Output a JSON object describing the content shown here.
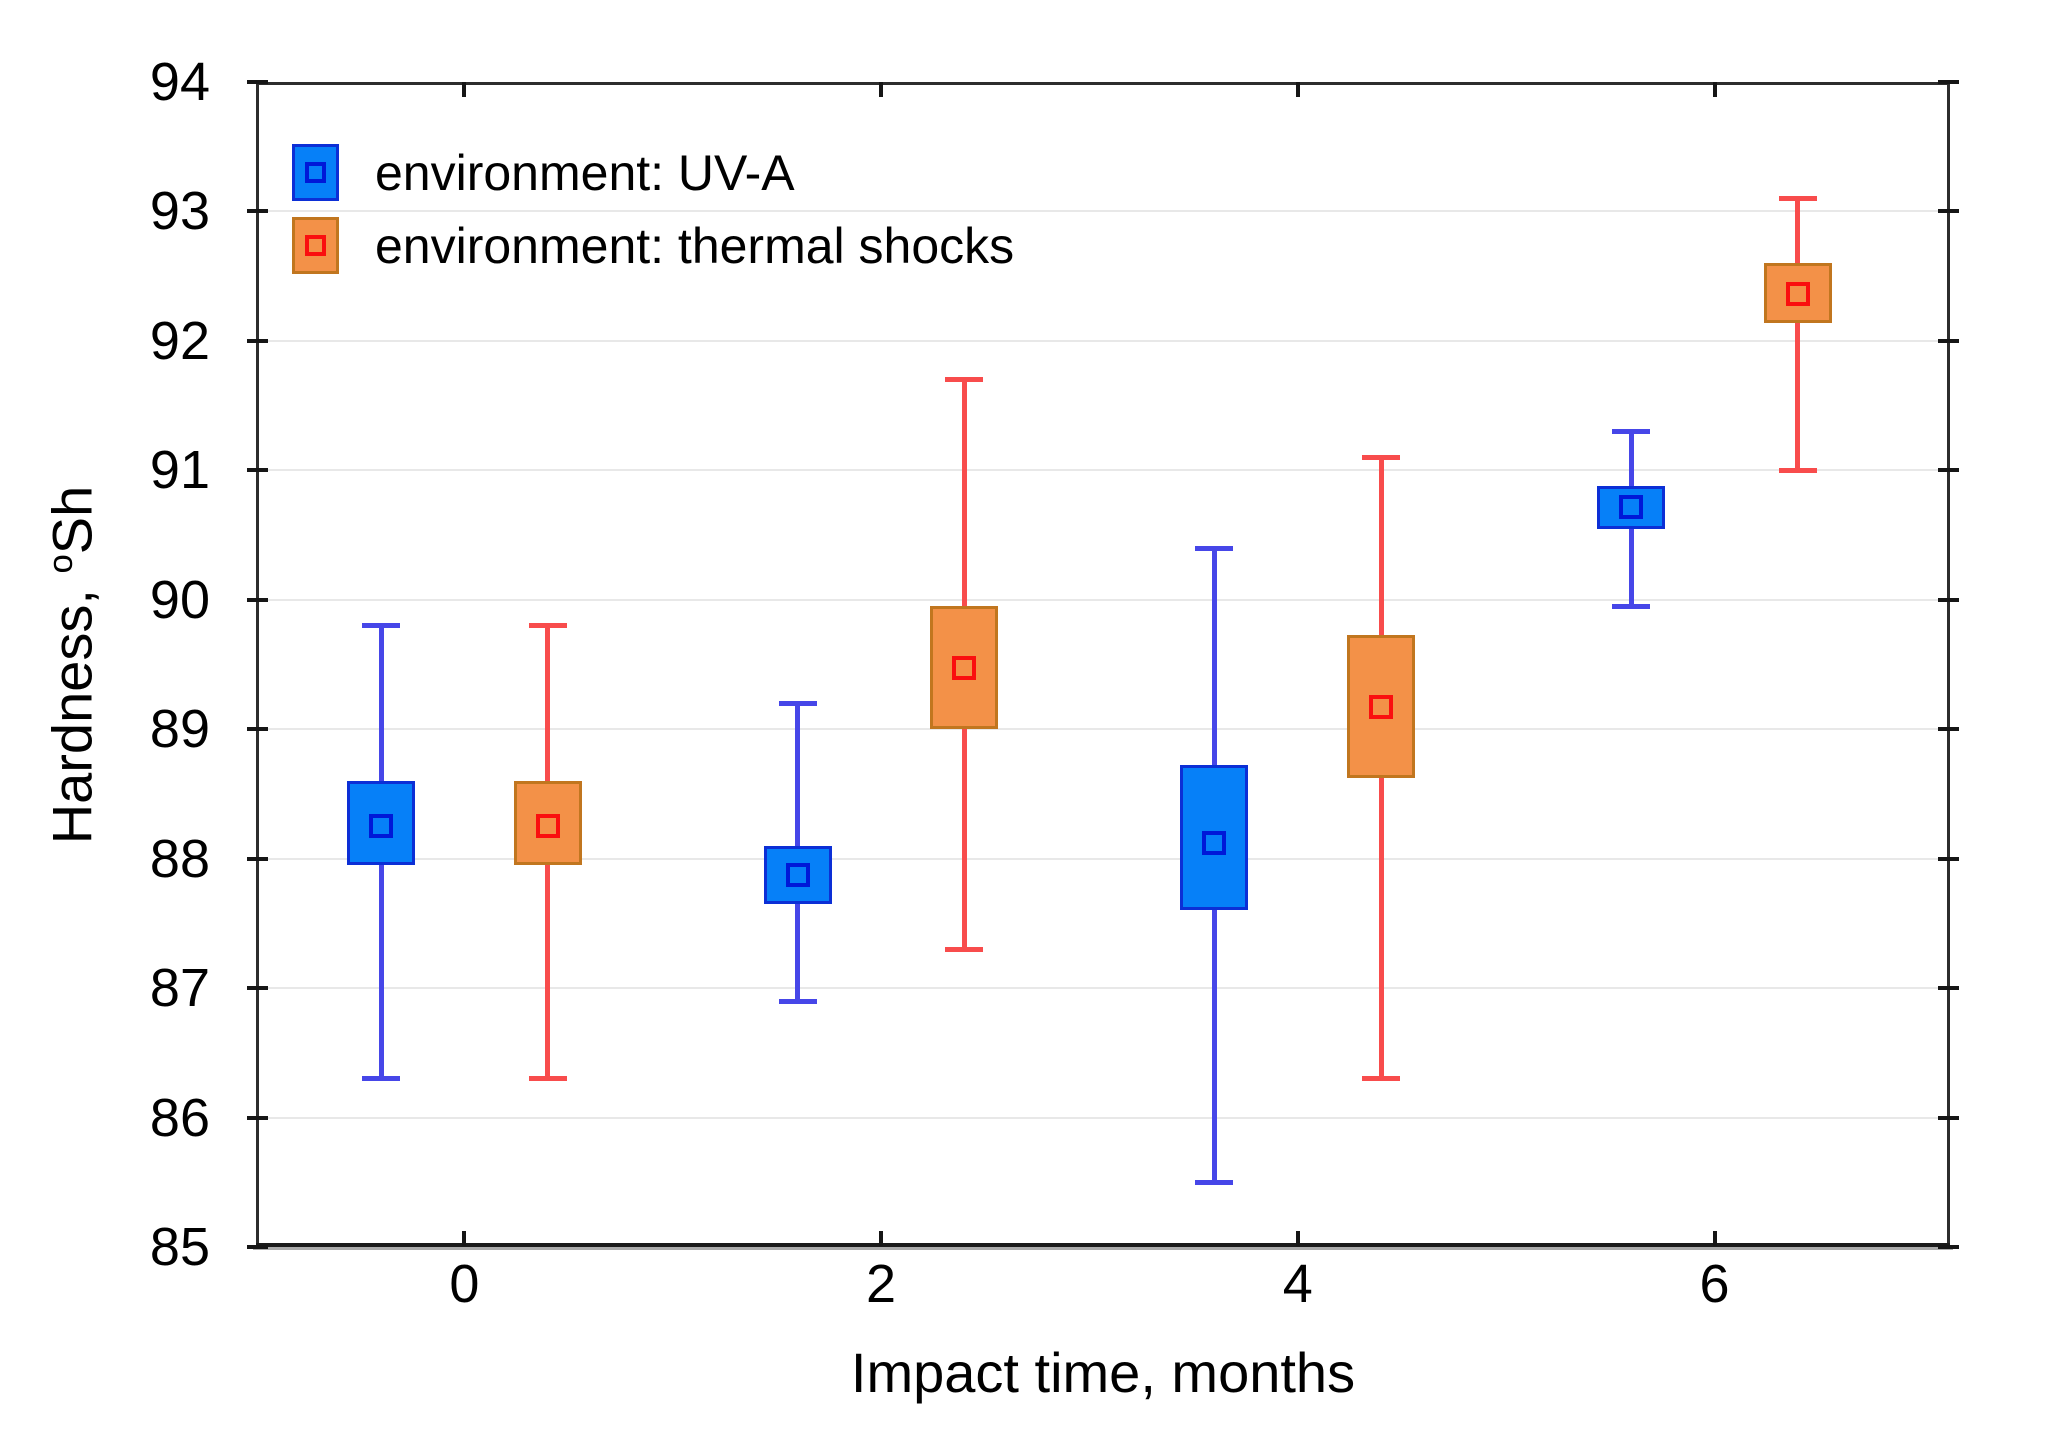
{
  "axes": {
    "xlabel": "Impact time, months",
    "ylabel_prefix": "Hardness, ",
    "ylabel_sup": "o",
    "ylabel_suffix": "Sh",
    "y_ticks": [
      94,
      93,
      92,
      91,
      90,
      89,
      88,
      87,
      86,
      85
    ],
    "x_ticks": [
      0,
      2,
      4,
      6
    ]
  },
  "style": {
    "background": "#ffffff",
    "frame": "#2d2d2d",
    "frame_bottom": "#1a1a1a",
    "frame_bottom_shadow": "#aaaaaa",
    "gridline": "#e8e8e8",
    "tick": "#161616",
    "text": "#000000"
  },
  "chart_data": {
    "type": "box",
    "title": "",
    "xlabel": "Impact time, months",
    "ylabel": "Hardness, °Sh",
    "xlim": [
      -1.0,
      7.13
    ],
    "ylim": [
      85,
      94
    ],
    "grid": "horizontal-only",
    "legend_position": "top-left-inside",
    "categories": [
      0,
      2,
      4,
      6
    ],
    "group_offset_months": 0.4,
    "box_halfwidth_months": 0.163,
    "series": [
      {
        "name": "environment: UV-A",
        "offset_sign": -1,
        "color_fill": "#0680f8",
        "color_border": "#0c2fd6",
        "color_whisker": "#4646e8",
        "color_marker": "#0018d8",
        "points": [
          {
            "t": 0,
            "mean": 88.25,
            "box_low": 87.95,
            "box_high": 88.6,
            "whisker_low": 86.3,
            "whisker_high": 89.8
          },
          {
            "t": 2,
            "mean": 87.87,
            "box_low": 87.65,
            "box_high": 88.1,
            "whisker_low": 86.9,
            "whisker_high": 89.2
          },
          {
            "t": 4,
            "mean": 88.12,
            "box_low": 87.6,
            "box_high": 88.72,
            "whisker_low": 85.5,
            "whisker_high": 90.4
          },
          {
            "t": 6,
            "mean": 90.72,
            "box_low": 90.55,
            "box_high": 90.88,
            "whisker_low": 89.95,
            "whisker_high": 91.3
          }
        ]
      },
      {
        "name": "environment: thermal shocks",
        "offset_sign": 1,
        "color_fill": "#f39148",
        "color_border": "#c1761f",
        "color_whisker": "#f84c4c",
        "color_marker": "#fa0f0f",
        "points": [
          {
            "t": 0,
            "mean": 88.25,
            "box_low": 87.95,
            "box_high": 88.6,
            "whisker_low": 86.3,
            "whisker_high": 89.8
          },
          {
            "t": 2,
            "mean": 89.47,
            "box_low": 89.0,
            "box_high": 89.95,
            "whisker_low": 87.3,
            "whisker_high": 91.7
          },
          {
            "t": 4,
            "mean": 89.17,
            "box_low": 88.62,
            "box_high": 89.73,
            "whisker_low": 86.3,
            "whisker_high": 91.1
          },
          {
            "t": 6,
            "mean": 92.36,
            "box_low": 92.14,
            "box_high": 92.6,
            "whisker_low": 91.0,
            "whisker_high": 93.1
          }
        ]
      }
    ]
  }
}
